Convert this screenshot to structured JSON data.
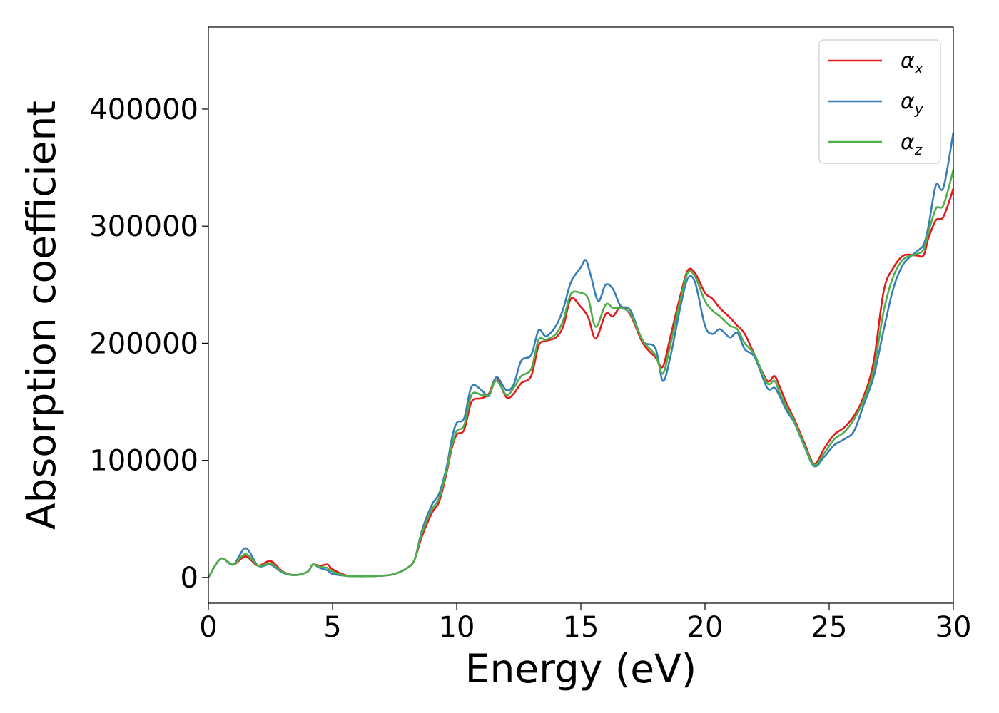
{
  "chart_data": {
    "type": "line",
    "xlabel": "Energy (eV)",
    "ylabel": "Absorption coefficient",
    "xlim": [
      0,
      30
    ],
    "ylim": [
      -22000,
      470000
    ],
    "x_ticks": [
      0,
      5,
      10,
      15,
      20,
      25,
      30
    ],
    "y_ticks": [
      0,
      100000,
      200000,
      300000,
      400000
    ],
    "grid": false,
    "legend_position": "top-right",
    "series": [
      {
        "name": "α_x",
        "label_main": "α",
        "label_sub": "x",
        "color": "#e41a1c",
        "points": [
          [
            0,
            0
          ],
          [
            0.5,
            16000
          ],
          [
            1,
            11000
          ],
          [
            1.5,
            18000
          ],
          [
            2,
            10000
          ],
          [
            2.5,
            14000
          ],
          [
            3,
            5000
          ],
          [
            3.5,
            2000
          ],
          [
            4,
            5000
          ],
          [
            4.2,
            11000
          ],
          [
            4.5,
            10000
          ],
          [
            4.8,
            11000
          ],
          [
            5,
            7000
          ],
          [
            5.5,
            2000
          ],
          [
            6,
            1000
          ],
          [
            7,
            1500
          ],
          [
            7.5,
            3000
          ],
          [
            8,
            8000
          ],
          [
            8.3,
            15000
          ],
          [
            8.6,
            35000
          ],
          [
            9,
            55000
          ],
          [
            9.3,
            65000
          ],
          [
            9.6,
            90000
          ],
          [
            9.8,
            110000
          ],
          [
            10,
            122000
          ],
          [
            10.3,
            126000
          ],
          [
            10.6,
            150000
          ],
          [
            11,
            153000
          ],
          [
            11.3,
            157000
          ],
          [
            11.6,
            170000
          ],
          [
            12,
            154000
          ],
          [
            12.3,
            157000
          ],
          [
            12.6,
            166000
          ],
          [
            13,
            172000
          ],
          [
            13.3,
            198000
          ],
          [
            13.6,
            202000
          ],
          [
            14,
            205000
          ],
          [
            14.3,
            215000
          ],
          [
            14.6,
            238000
          ],
          [
            15,
            231000
          ],
          [
            15.3,
            222000
          ],
          [
            15.6,
            204000
          ],
          [
            16,
            225000
          ],
          [
            16.3,
            223000
          ],
          [
            16.6,
            231000
          ],
          [
            17,
            224000
          ],
          [
            17.5,
            200000
          ],
          [
            18,
            188000
          ],
          [
            18.3,
            180000
          ],
          [
            18.6,
            205000
          ],
          [
            19,
            240000
          ],
          [
            19.3,
            262000
          ],
          [
            19.6,
            260000
          ],
          [
            20,
            243000
          ],
          [
            20.3,
            238000
          ],
          [
            20.6,
            230000
          ],
          [
            21,
            222000
          ],
          [
            21.3,
            215000
          ],
          [
            21.6,
            208000
          ],
          [
            22,
            190000
          ],
          [
            22.5,
            168000
          ],
          [
            22.8,
            172000
          ],
          [
            23,
            163000
          ],
          [
            23.3,
            148000
          ],
          [
            23.6,
            135000
          ],
          [
            24,
            115000
          ],
          [
            24.4,
            97000
          ],
          [
            24.8,
            110000
          ],
          [
            25.2,
            122000
          ],
          [
            25.6,
            128000
          ],
          [
            26,
            138000
          ],
          [
            26.4,
            155000
          ],
          [
            26.8,
            185000
          ],
          [
            27.2,
            245000
          ],
          [
            27.6,
            265000
          ],
          [
            28,
            275000
          ],
          [
            28.5,
            275000
          ],
          [
            28.8,
            275000
          ],
          [
            29,
            290000
          ],
          [
            29.3,
            305000
          ],
          [
            29.6,
            308000
          ],
          [
            30,
            332000
          ]
        ]
      },
      {
        "name": "α_y",
        "label_main": "α",
        "label_sub": "y",
        "color": "#377eb8",
        "points": [
          [
            0,
            0
          ],
          [
            0.5,
            16000
          ],
          [
            1,
            11000
          ],
          [
            1.5,
            25000
          ],
          [
            2,
            10000
          ],
          [
            2.5,
            11000
          ],
          [
            3,
            4000
          ],
          [
            3.5,
            2000
          ],
          [
            4,
            5000
          ],
          [
            4.2,
            11000
          ],
          [
            4.5,
            8000
          ],
          [
            4.8,
            6000
          ],
          [
            5,
            3000
          ],
          [
            5.5,
            1500
          ],
          [
            6,
            1000
          ],
          [
            7,
            1500
          ],
          [
            7.5,
            3000
          ],
          [
            8,
            8000
          ],
          [
            8.3,
            15000
          ],
          [
            8.6,
            40000
          ],
          [
            9,
            62000
          ],
          [
            9.3,
            72000
          ],
          [
            9.6,
            95000
          ],
          [
            9.8,
            118000
          ],
          [
            10,
            132000
          ],
          [
            10.3,
            136000
          ],
          [
            10.6,
            163000
          ],
          [
            11,
            160000
          ],
          [
            11.3,
            155000
          ],
          [
            11.6,
            171000
          ],
          [
            12,
            160000
          ],
          [
            12.3,
            165000
          ],
          [
            12.6,
            185000
          ],
          [
            13,
            190000
          ],
          [
            13.3,
            211000
          ],
          [
            13.6,
            206000
          ],
          [
            14,
            215000
          ],
          [
            14.3,
            230000
          ],
          [
            14.6,
            252000
          ],
          [
            15,
            265000
          ],
          [
            15.2,
            271000
          ],
          [
            15.4,
            258000
          ],
          [
            15.7,
            236000
          ],
          [
            16,
            250000
          ],
          [
            16.3,
            246000
          ],
          [
            16.6,
            232000
          ],
          [
            17,
            228000
          ],
          [
            17.5,
            202000
          ],
          [
            18,
            196000
          ],
          [
            18.3,
            168000
          ],
          [
            18.6,
            188000
          ],
          [
            19,
            230000
          ],
          [
            19.3,
            255000
          ],
          [
            19.6,
            252000
          ],
          [
            20,
            215000
          ],
          [
            20.3,
            208000
          ],
          [
            20.6,
            212000
          ],
          [
            21,
            205000
          ],
          [
            21.3,
            209000
          ],
          [
            21.6,
            195000
          ],
          [
            22,
            188000
          ],
          [
            22.5,
            162000
          ],
          [
            22.8,
            162000
          ],
          [
            23,
            155000
          ],
          [
            23.3,
            142000
          ],
          [
            23.6,
            132000
          ],
          [
            24,
            112000
          ],
          [
            24.4,
            95000
          ],
          [
            24.8,
            103000
          ],
          [
            25.2,
            113000
          ],
          [
            25.6,
            118000
          ],
          [
            26,
            125000
          ],
          [
            26.4,
            148000
          ],
          [
            26.8,
            172000
          ],
          [
            27.2,
            212000
          ],
          [
            27.6,
            248000
          ],
          [
            28,
            268000
          ],
          [
            28.5,
            278000
          ],
          [
            28.8,
            284000
          ],
          [
            29,
            300000
          ],
          [
            29.3,
            335000
          ],
          [
            29.6,
            333000
          ],
          [
            30,
            380000
          ]
        ]
      },
      {
        "name": "α_z",
        "label_main": "α",
        "label_sub": "z",
        "color": "#4daf4a",
        "points": [
          [
            0,
            0
          ],
          [
            0.5,
            16000
          ],
          [
            1,
            11000
          ],
          [
            1.5,
            20000
          ],
          [
            2,
            10000
          ],
          [
            2.5,
            12000
          ],
          [
            3,
            4500
          ],
          [
            3.5,
            2000
          ],
          [
            4,
            5000
          ],
          [
            4.2,
            11000
          ],
          [
            4.5,
            9000
          ],
          [
            4.8,
            8000
          ],
          [
            5,
            5000
          ],
          [
            5.5,
            1500
          ],
          [
            6,
            1000
          ],
          [
            7,
            1500
          ],
          [
            7.5,
            3000
          ],
          [
            8,
            8000
          ],
          [
            8.3,
            15000
          ],
          [
            8.6,
            38000
          ],
          [
            9,
            58000
          ],
          [
            9.3,
            68000
          ],
          [
            9.6,
            92000
          ],
          [
            9.8,
            112000
          ],
          [
            10,
            125000
          ],
          [
            10.3,
            130000
          ],
          [
            10.6,
            156000
          ],
          [
            11,
            156000
          ],
          [
            11.3,
            156000
          ],
          [
            11.6,
            168000
          ],
          [
            12,
            156000
          ],
          [
            12.3,
            162000
          ],
          [
            12.6,
            172000
          ],
          [
            13,
            178000
          ],
          [
            13.3,
            203000
          ],
          [
            13.6,
            203000
          ],
          [
            14,
            208000
          ],
          [
            14.3,
            220000
          ],
          [
            14.6,
            242000
          ],
          [
            15,
            243000
          ],
          [
            15.3,
            238000
          ],
          [
            15.6,
            214000
          ],
          [
            16,
            233000
          ],
          [
            16.3,
            230000
          ],
          [
            16.6,
            230000
          ],
          [
            17,
            225000
          ],
          [
            17.5,
            202000
          ],
          [
            18,
            190000
          ],
          [
            18.3,
            174000
          ],
          [
            18.6,
            198000
          ],
          [
            19,
            236000
          ],
          [
            19.3,
            260000
          ],
          [
            19.6,
            257000
          ],
          [
            20,
            236000
          ],
          [
            20.3,
            228000
          ],
          [
            20.6,
            223000
          ],
          [
            21,
            215000
          ],
          [
            21.3,
            212000
          ],
          [
            21.6,
            200000
          ],
          [
            22,
            190000
          ],
          [
            22.5,
            166000
          ],
          [
            22.8,
            168000
          ],
          [
            23,
            158000
          ],
          [
            23.3,
            145000
          ],
          [
            23.6,
            133000
          ],
          [
            24,
            113000
          ],
          [
            24.4,
            96000
          ],
          [
            24.8,
            106000
          ],
          [
            25.2,
            118000
          ],
          [
            25.6,
            124000
          ],
          [
            26,
            135000
          ],
          [
            26.4,
            152000
          ],
          [
            26.8,
            178000
          ],
          [
            27.2,
            228000
          ],
          [
            27.6,
            258000
          ],
          [
            28,
            272000
          ],
          [
            28.5,
            276000
          ],
          [
            28.8,
            280000
          ],
          [
            29,
            295000
          ],
          [
            29.3,
            315000
          ],
          [
            29.6,
            318000
          ],
          [
            30,
            348000
          ]
        ]
      }
    ]
  }
}
